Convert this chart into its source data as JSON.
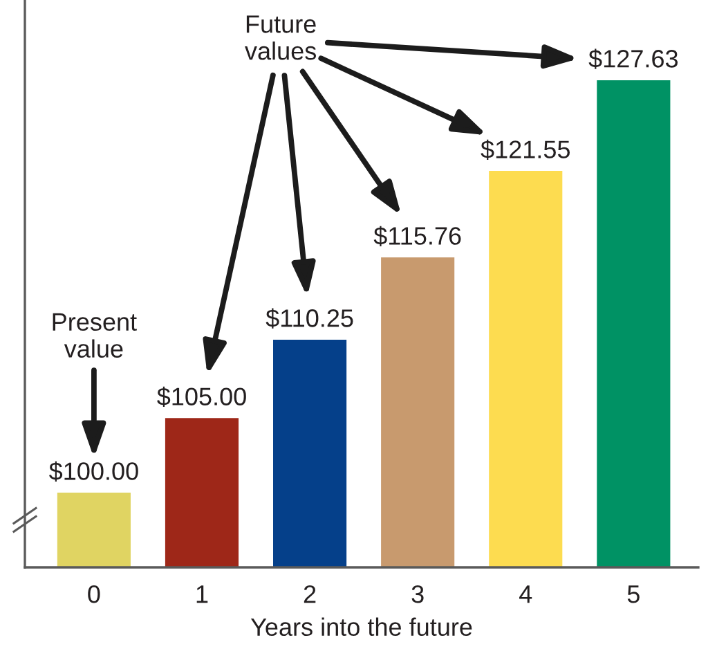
{
  "chart_data": {
    "type": "bar",
    "categories": [
      "0",
      "1",
      "2",
      "3",
      "4",
      "5"
    ],
    "values": [
      100.0,
      105.0,
      110.25,
      115.76,
      121.55,
      127.63
    ],
    "colors": [
      "#e0d462",
      "#9e2718",
      "#05408a",
      "#c89a6e",
      "#fddc50",
      "#009264"
    ],
    "value_labels": [
      "$100.00",
      "$105.00",
      "$110.25",
      "$115.76",
      "$121.55",
      "$127.63"
    ],
    "xlabel": "Years into the future",
    "ylim": [
      95,
      133
    ],
    "tick_labels": "x",
    "annotations": [
      "Present\nvalue",
      "Future\nvalues"
    ]
  }
}
